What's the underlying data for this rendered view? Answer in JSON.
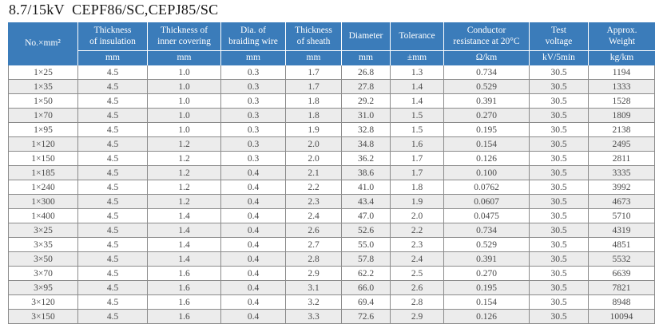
{
  "title": "8.7/15kV  CEPF86/SC,CEPJ85/SC",
  "table": {
    "columns": [
      {
        "label": "No.×mm²",
        "unit": ""
      },
      {
        "label": "Thickness\nof insulation",
        "unit": "mm"
      },
      {
        "label": "Thickness of\ninner covering",
        "unit": "mm"
      },
      {
        "label": "Dia. of\nbraiding wire",
        "unit": "mm"
      },
      {
        "label": "Thickness\nof sheath",
        "unit": "mm"
      },
      {
        "label": "Diameter",
        "unit": "mm"
      },
      {
        "label": "Tolerance",
        "unit": "±mm"
      },
      {
        "label": "Conductor\nresistance at 20°C",
        "unit": "Ω/km"
      },
      {
        "label": "Test\nvoltage",
        "unit": "kV/5min"
      },
      {
        "label": "Approx.\nWeight",
        "unit": "kg/km"
      }
    ],
    "rows": [
      [
        "1×25",
        "4.5",
        "1.0",
        "0.3",
        "1.7",
        "26.8",
        "1.3",
        "0.734",
        "30.5",
        "1194"
      ],
      [
        "1×35",
        "4.5",
        "1.0",
        "0.3",
        "1.7",
        "27.8",
        "1.4",
        "0.529",
        "30.5",
        "1333"
      ],
      [
        "1×50",
        "4.5",
        "1.0",
        "0.3",
        "1.8",
        "29.2",
        "1.4",
        "0.391",
        "30.5",
        "1528"
      ],
      [
        "1×70",
        "4.5",
        "1.0",
        "0.3",
        "1.8",
        "31.0",
        "1.5",
        "0.270",
        "30.5",
        "1809"
      ],
      [
        "1×95",
        "4.5",
        "1.0",
        "0.3",
        "1.9",
        "32.8",
        "1.5",
        "0.195",
        "30.5",
        "2138"
      ],
      [
        "1×120",
        "4.5",
        "1.2",
        "0.3",
        "2.0",
        "34.8",
        "1.6",
        "0.154",
        "30.5",
        "2495"
      ],
      [
        "1×150",
        "4.5",
        "1.2",
        "0.3",
        "2.0",
        "36.2",
        "1.7",
        "0.126",
        "30.5",
        "2811"
      ],
      [
        "1×185",
        "4.5",
        "1.2",
        "0.4",
        "2.1",
        "38.6",
        "1.7",
        "0.100",
        "30.5",
        "3335"
      ],
      [
        "1×240",
        "4.5",
        "1.2",
        "0.4",
        "2.2",
        "41.0",
        "1.8",
        "0.0762",
        "30.5",
        "3992"
      ],
      [
        "1×300",
        "4.5",
        "1.2",
        "0.4",
        "2.3",
        "43.4",
        "1.9",
        "0.0607",
        "30.5",
        "4673"
      ],
      [
        "1×400",
        "4.5",
        "1.4",
        "0.4",
        "2.4",
        "47.0",
        "2.0",
        "0.0475",
        "30.5",
        "5710"
      ],
      [
        "3×25",
        "4.5",
        "1.4",
        "0.4",
        "2.6",
        "52.6",
        "2.2",
        "0.734",
        "30.5",
        "4319"
      ],
      [
        "3×35",
        "4.5",
        "1.4",
        "0.4",
        "2.7",
        "55.0",
        "2.3",
        "0.529",
        "30.5",
        "4851"
      ],
      [
        "3×50",
        "4.5",
        "1.4",
        "0.4",
        "2.8",
        "57.8",
        "2.4",
        "0.391",
        "30.5",
        "5532"
      ],
      [
        "3×70",
        "4.5",
        "1.6",
        "0.4",
        "2.9",
        "62.2",
        "2.5",
        "0.270",
        "30.5",
        "6639"
      ],
      [
        "3×95",
        "4.5",
        "1.6",
        "0.4",
        "3.1",
        "66.0",
        "2.6",
        "0.195",
        "30.5",
        "7821"
      ],
      [
        "3×120",
        "4.5",
        "1.6",
        "0.4",
        "3.2",
        "69.4",
        "2.8",
        "0.154",
        "30.5",
        "8948"
      ],
      [
        "3×150",
        "4.5",
        "1.6",
        "0.4",
        "3.3",
        "72.6",
        "2.9",
        "0.126",
        "30.5",
        "10094"
      ]
    ]
  },
  "colors": {
    "header_bg": "#3b7cba",
    "header_text": "#ffffff",
    "row_stripe": "#ececec",
    "grid_line": "#8b8b8b",
    "cell_text": "#4a4a4a"
  }
}
